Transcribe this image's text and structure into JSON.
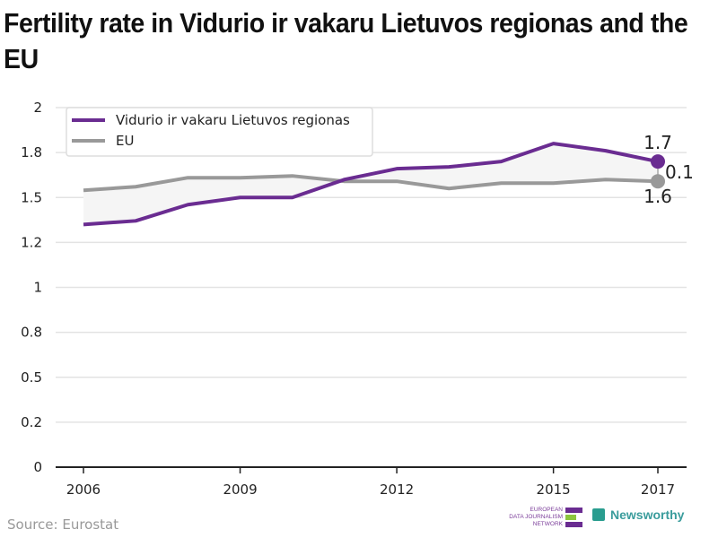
{
  "title": "Fertility rate in Vidurio ir vakaru Lietuvos regionas and the EU",
  "source": "Source: Eurostat",
  "logos": {
    "edjn": [
      "EUROPEAN",
      "DATA JOURNALISM",
      "NETWORK"
    ],
    "newsworthy": "Newsworthy"
  },
  "colors": {
    "region": "#6a2c91",
    "eu": "#999999",
    "band": "#f5f5f5"
  },
  "chart_data": {
    "type": "line",
    "title": "Fertility rate in Vidurio ir vakaru Lietuvos regionas and the EU",
    "xlabel": "",
    "ylabel": "",
    "x": [
      2006,
      2007,
      2008,
      2009,
      2010,
      2011,
      2012,
      2013,
      2014,
      2015,
      2016,
      2017
    ],
    "x_ticks": [
      "2006",
      "2009",
      "2012",
      "2015",
      "2017"
    ],
    "x_tick_values": [
      2006,
      2009,
      2012,
      2015,
      2017
    ],
    "y_ticks": [
      "0",
      "0.2",
      "0.5",
      "0.8",
      "1",
      "1.2",
      "1.5",
      "1.8",
      "2"
    ],
    "y_tick_values": [
      0,
      0.25,
      0.5,
      0.75,
      1,
      1.25,
      1.5,
      1.75,
      2
    ],
    "ylim": [
      0,
      2
    ],
    "grid": true,
    "legend_position": "top-left",
    "series": [
      {
        "name": "Vidurio ir vakaru Lietuvos regionas",
        "values": [
          1.35,
          1.37,
          1.46,
          1.5,
          1.5,
          1.6,
          1.66,
          1.67,
          1.7,
          1.8,
          1.76,
          1.7
        ]
      },
      {
        "name": "EU",
        "values": [
          1.54,
          1.56,
          1.61,
          1.61,
          1.62,
          1.59,
          1.59,
          1.55,
          1.58,
          1.58,
          1.6,
          1.59
        ]
      }
    ],
    "annotations": {
      "region_last": "1.7",
      "eu_last": "1.6",
      "difference": "0.1"
    }
  }
}
